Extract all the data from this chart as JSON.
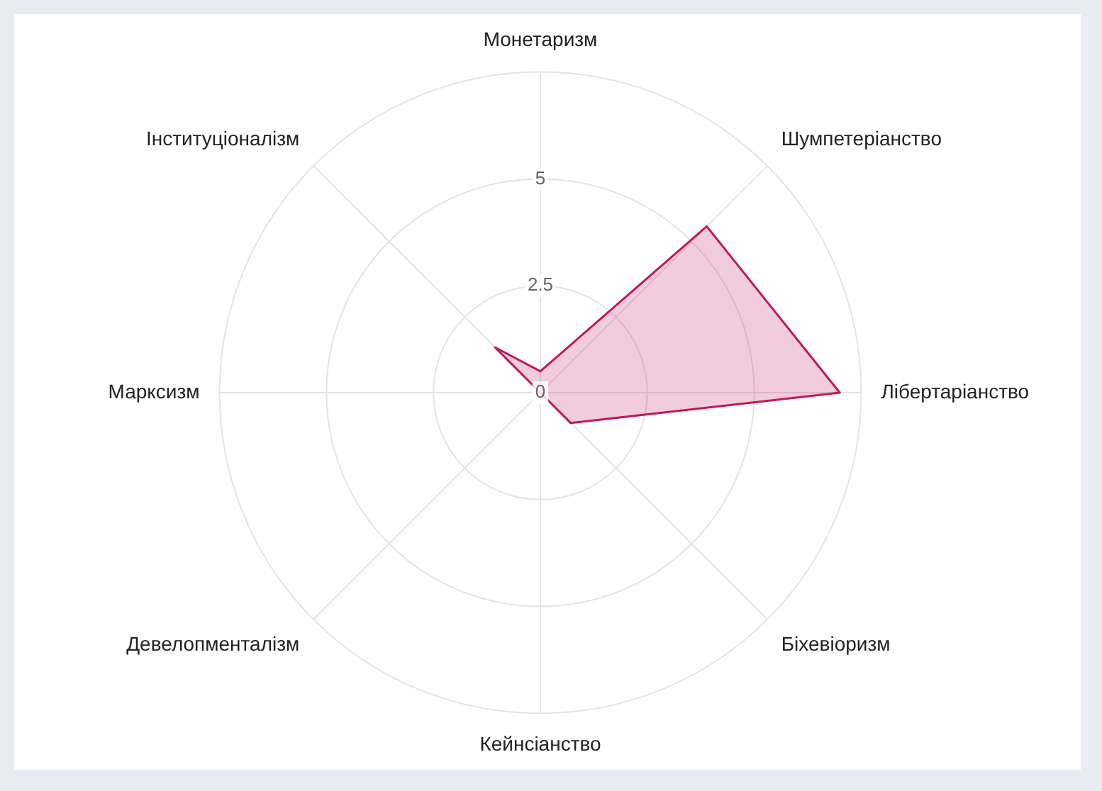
{
  "chart_data": {
    "type": "radar",
    "categories": [
      "Монетаризм",
      "Шумпетеріанство",
      "Лібертаріанство",
      "Біхевіоризм",
      "Кейнсіанство",
      "Девелопменталізм",
      "Марксизм",
      "Інституціоналізм"
    ],
    "series": [
      {
        "color": "#c2185b",
        "values": [
          0.5,
          5.5,
          7,
          1,
          0,
          0,
          0,
          1.5
        ]
      }
    ],
    "ylim": [
      0,
      7.5
    ],
    "yticks": [
      0,
      2.5,
      5
    ],
    "grid": true,
    "legend": false,
    "marker": "none"
  }
}
